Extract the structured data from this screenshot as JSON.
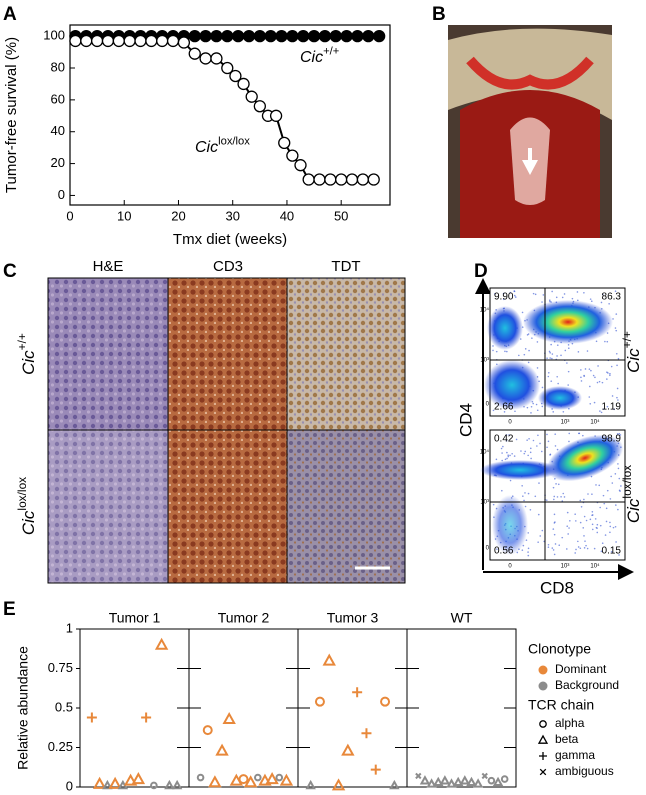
{
  "chart_data": [
    {
      "type": "line",
      "panel_label": "A",
      "x_label": "Tmx diet (weeks)",
      "y_label": "Tumor-free survival (%)",
      "xlim": [
        0,
        59
      ],
      "ylim": [
        -6,
        107
      ],
      "xticks": [
        0,
        10,
        20,
        30,
        40,
        50
      ],
      "yticks": [
        0,
        20,
        40,
        60,
        80,
        100
      ],
      "series": [
        {
          "label": {
            "italic": "Cic",
            "sup": "+/+"
          },
          "color": "#000000",
          "fill": "#000000",
          "x": [
            1,
            3,
            5,
            7,
            9,
            11,
            13,
            15,
            17,
            19,
            21,
            23,
            25,
            27,
            29,
            31,
            33,
            35,
            37,
            39,
            41,
            43,
            45,
            47,
            49,
            51,
            53,
            55,
            57
          ],
          "values": [
            100,
            100,
            100,
            100,
            100,
            100,
            100,
            100,
            100,
            100,
            100,
            100,
            100,
            100,
            100,
            100,
            100,
            100,
            100,
            100,
            100,
            100,
            100,
            100,
            100,
            100,
            100,
            100,
            100
          ]
        },
        {
          "label": {
            "italic": "Cic",
            "sup": "lox/lox"
          },
          "color": "#000000",
          "fill": "#ffffff",
          "x": [
            1,
            3,
            5,
            7,
            9,
            11,
            13,
            15,
            17,
            19,
            21,
            23,
            25,
            27,
            29,
            30.5,
            32,
            33.5,
            35,
            36.5,
            38,
            39.5,
            41,
            42.5,
            44,
            46,
            48,
            50,
            52,
            54,
            56
          ],
          "values": [
            97,
            97,
            97,
            97,
            97,
            97,
            97,
            97,
            97,
            97,
            96,
            89,
            86,
            86,
            80,
            75,
            70,
            62,
            56,
            50,
            50,
            33,
            25,
            19,
            10,
            10,
            10,
            10,
            10,
            10,
            10
          ]
        }
      ]
    },
    {
      "type": "scatter",
      "panel_label": "E",
      "y_label": "Relative abundance",
      "ylim": [
        0,
        1
      ],
      "yticks": [
        0,
        0.25,
        0.5,
        0.75,
        1
      ],
      "facets": [
        {
          "title": "Tumor 1",
          "values": [
            0.44,
            0.02,
            0.01,
            0.02,
            0.01,
            0.04,
            0.05,
            0.44,
            0.01,
            0.9,
            0.01,
            0.01
          ],
          "clonotype": [
            "Dominant",
            "Dominant",
            "Background",
            "Dominant",
            "Background",
            "Dominant",
            "Dominant",
            "Dominant",
            "Background",
            "Dominant",
            "Background",
            "Background"
          ],
          "chain": [
            "gamma",
            "beta",
            "beta",
            "beta",
            "beta",
            "beta",
            "beta",
            "gamma",
            "alpha",
            "beta",
            "beta",
            "beta"
          ]
        },
        {
          "title": "Tumor 2",
          "values": [
            0.06,
            0.36,
            0.03,
            0.23,
            0.43,
            0.04,
            0.05,
            0.03,
            0.06,
            0.04,
            0.05,
            0.06,
            0.04
          ],
          "clonotype": [
            "Background",
            "Dominant",
            "Dominant",
            "Dominant",
            "Dominant",
            "Dominant",
            "Dominant",
            "Dominant",
            "Background",
            "Dominant",
            "Dominant",
            "Background",
            "Dominant"
          ],
          "chain": [
            "alpha",
            "alpha",
            "beta",
            "beta",
            "beta",
            "beta",
            "alpha",
            "beta",
            "alpha",
            "beta",
            "beta",
            "alpha",
            "beta"
          ]
        },
        {
          "title": "Tumor 3",
          "values": [
            0.01,
            0.54,
            0.8,
            0.01,
            0.23,
            0.6,
            0.34,
            0.11,
            0.54,
            0.01
          ],
          "clonotype": [
            "Background",
            "Dominant",
            "Dominant",
            "Dominant",
            "Dominant",
            "Dominant",
            "Dominant",
            "Dominant",
            "Dominant",
            "Background"
          ],
          "chain": [
            "beta",
            "alpha",
            "beta",
            "beta",
            "beta",
            "gamma",
            "gamma",
            "gamma",
            "alpha",
            "beta"
          ]
        },
        {
          "title": "WT",
          "values": [
            0.07,
            0.04,
            0.02,
            0.03,
            0.04,
            0.02,
            0.03,
            0.04,
            0.03,
            0.02,
            0.07,
            0.04,
            0.03,
            0.05
          ],
          "clonotype": [
            "Background",
            "Background",
            "Background",
            "Background",
            "Background",
            "Background",
            "Background",
            "Background",
            "Background",
            "Background",
            "Background",
            "Background",
            "Background",
            "Background"
          ],
          "chain": [
            "ambiguous",
            "beta",
            "beta",
            "beta",
            "beta",
            "beta",
            "beta",
            "beta",
            "beta",
            "beta",
            "ambiguous",
            "alpha",
            "beta",
            "alpha"
          ]
        }
      ],
      "legend": {
        "clonotype_title": "Clonotype",
        "clonotypes": [
          {
            "name": "Dominant",
            "color": "#e8883a"
          },
          {
            "name": "Background",
            "color": "#8c8c8c"
          }
        ],
        "chain_title": "TCR chain",
        "chains": [
          {
            "name": "alpha",
            "shape": "circle"
          },
          {
            "name": "beta",
            "shape": "triangle"
          },
          {
            "name": "gamma",
            "shape": "plus"
          },
          {
            "name": "ambiguous",
            "shape": "cross"
          }
        ]
      }
    }
  ],
  "panel_b": {
    "label": "B"
  },
  "panel_c": {
    "label": "C",
    "columns": [
      "H&E",
      "CD3",
      "TDT"
    ],
    "rows": [
      {
        "italic": "Cic",
        "sup": "+/+"
      },
      {
        "italic": "Cic",
        "sup": "lox/lox"
      }
    ]
  },
  "panel_d": {
    "label": "D",
    "y_axis": "CD4",
    "x_axis": "CD8",
    "plots": [
      {
        "genotype": {
          "italic": "Cic",
          "sup": "+/+"
        },
        "quadrants": [
          "9.90",
          "86.3",
          "2.66",
          "1.19"
        ],
        "xticks": [
          "0",
          "10³",
          "10⁴"
        ],
        "yticks": [
          "0",
          "10³",
          "10⁴"
        ]
      },
      {
        "genotype": {
          "italic": "Cic",
          "sup": "lox/lox"
        },
        "quadrants": [
          "0.42",
          "98.9",
          "0.56",
          "0.15"
        ],
        "xticks": [
          "0",
          "10³",
          "10⁴"
        ],
        "yticks": [
          "0",
          "10³",
          "10⁴"
        ]
      }
    ]
  }
}
